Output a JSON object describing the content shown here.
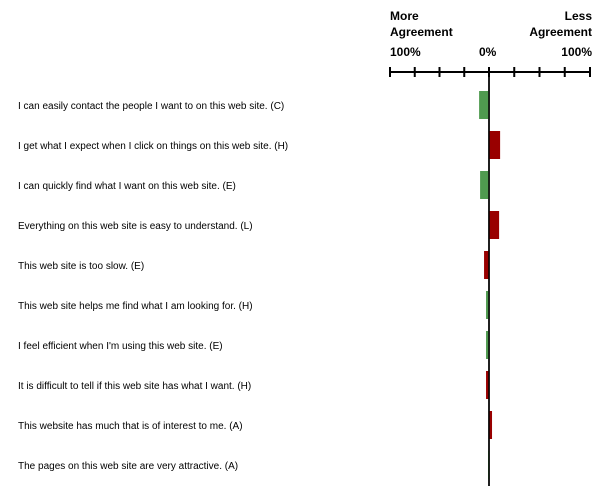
{
  "header": {
    "left_label_line1": "More",
    "left_label_line2": "Agreement",
    "right_label_line1": "Less",
    "right_label_line2": "Agreement",
    "tick_left": "100%",
    "tick_mid": "0%",
    "tick_right": "100%"
  },
  "chart_data": {
    "type": "bar",
    "orientation": "horizontal",
    "diverging": true,
    "xlim": [
      -100,
      100
    ],
    "x_tick_step": 25,
    "colors": {
      "positive": "#4f9a4f",
      "negative": "#990000"
    },
    "categories": [
      "I can easily contact the people I want to on this web site. (C)",
      "I get what I expect when I click on things on this web site. (H)",
      "I can quickly find what I want on this web site. (E)",
      "Everything on this web site is easy to understand. (L)",
      "This web site is too slow. (E)",
      "This web site helps me find what I am looking for. (H)",
      "I feel efficient when I'm using this web site. (E)",
      "It is difficult to tell if this web site has what I want. (H)",
      "This website has much that is of interest to me. (A)",
      "The pages on this web site are very attractive. (A)"
    ],
    "values": [
      -10,
      11,
      -9,
      10,
      -5,
      -3,
      -3,
      -3,
      3,
      -1
    ],
    "bar_colors": [
      "positive",
      "negative",
      "positive",
      "negative",
      "negative",
      "positive",
      "positive",
      "negative",
      "negative",
      "positive"
    ]
  }
}
